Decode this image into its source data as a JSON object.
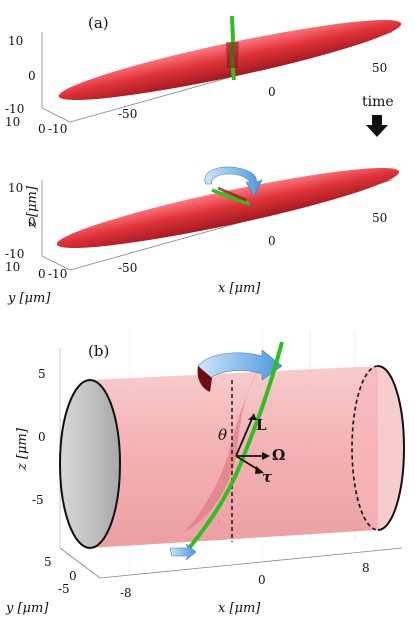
{
  "panel_a": {
    "label": "(a)",
    "time_label": "time",
    "top": {
      "z_ticks": [
        "10",
        "0",
        "-10"
      ],
      "y_ticks": [
        "10",
        "0",
        "-10"
      ],
      "x_ticks": [
        "-50",
        "0",
        "50"
      ]
    },
    "bottom": {
      "z_ticks": [
        "10",
        "0",
        "-10"
      ],
      "y_ticks": [
        "10",
        "0",
        "-10"
      ],
      "x_ticks": [
        "-50",
        "0",
        "50"
      ],
      "xlabel": "x [μm]",
      "ylabel": "y [μm]",
      "zlabel": "z [μm]"
    }
  },
  "panel_b": {
    "label": "(b)",
    "z_ticks": [
      "5",
      "0",
      "-5"
    ],
    "y_ticks": [
      "5",
      "-5"
    ],
    "x_ticks": [
      "-8",
      "0",
      "8"
    ],
    "xlabel": "x [μm]",
    "ylabel": "y [μm]",
    "zlabel": "z [μm]",
    "symbols": {
      "theta": "θ",
      "L": "L",
      "Omega": "Ω",
      "tau": "τ"
    }
  },
  "colors": {
    "cell": "#e2333b",
    "cell_light": "#f4a6a8",
    "flagellum": "#2fbf1f",
    "arrow_blue": "#5aa9e6"
  }
}
